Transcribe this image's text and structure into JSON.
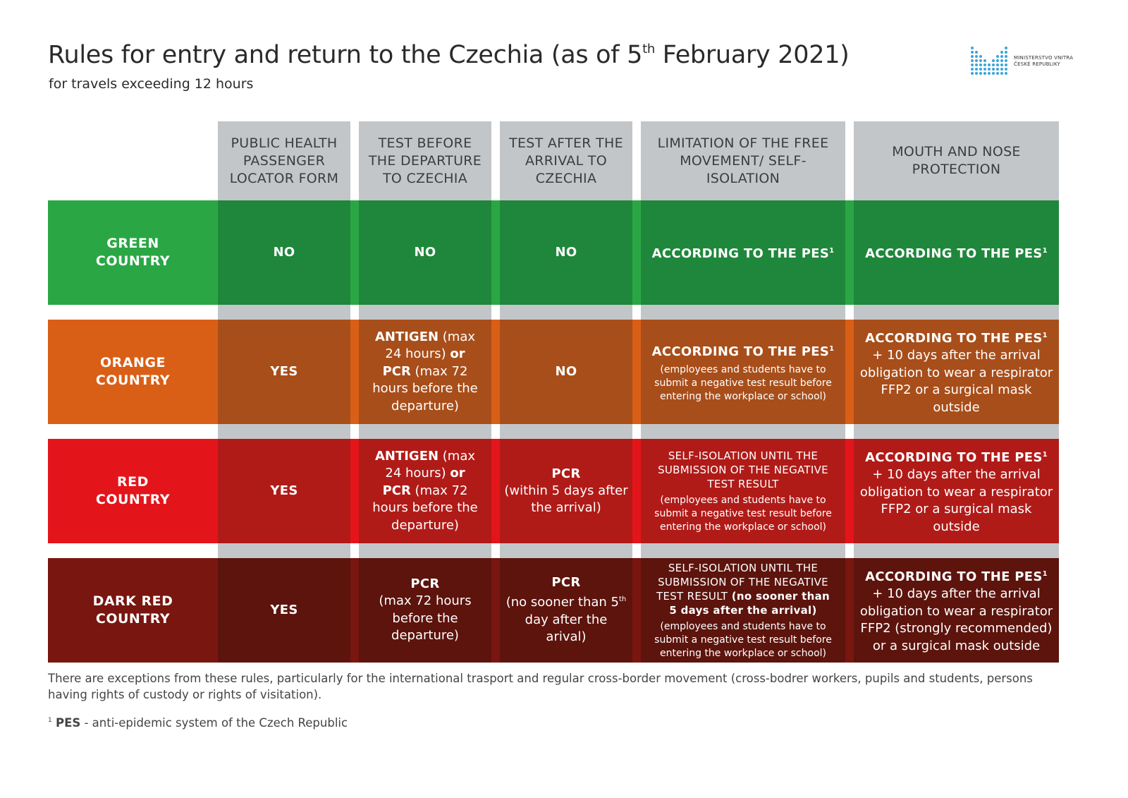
{
  "header": {
    "title_main": "Rules for entry and return to the Czechia (as of 5",
    "title_sup": "th",
    "title_end": " February 2021)",
    "subtitle": "for travels exceeding 12 hours",
    "logo": {
      "icon": "ministry-logo-dots-icon",
      "line1": "MINISTERSTVO VNITRA",
      "line2": "ČESKÉ REPUBLIKY",
      "color": "#3aa6d8"
    }
  },
  "columns": [
    "PUBLIC HEALTH PASSENGER LOCATOR FORM",
    "TEST BEFORE THE DEPARTURE TO CZECHIA",
    "TEST AFTER THE ARRIVAL TO CZECHIA",
    "LIMITATION OF THE FREE MOVEMENT/ SELF-ISOLATION",
    "MOUTH AND NOSE PROTECTION"
  ],
  "rows": [
    {
      "label": "GREEN COUNTRY",
      "base_color": "#2aa744",
      "cell_color": "#1f873b",
      "plf": "NO",
      "test_before": {
        "text": "NO"
      },
      "test_after": {
        "bold": "NO",
        "detail": ""
      },
      "isolation": {
        "bold": "ACCORDING TO THE PES",
        "sup": "1",
        "detail": ""
      },
      "mask": {
        "bold": "ACCORDING TO THE PES",
        "sup": "1",
        "detail": ""
      }
    },
    {
      "label": "ORANGE COUNTRY",
      "base_color": "#d95f17",
      "cell_color": "#a84e1a",
      "plf": "YES",
      "test_before": {
        "b1": "ANTIGEN",
        "t1": " (max 24 hours) ",
        "b2": "or",
        "b3": "PCR",
        "t2": " (max 72 hours before the departure)"
      },
      "test_after": {
        "bold": "NO",
        "detail": ""
      },
      "isolation": {
        "bold": "ACCORDING TO THE PES",
        "sup": "1",
        "detail": "(employees and students have to submit a negative test result before entering the workplace or school)"
      },
      "mask": {
        "bold": "ACCORDING TO THE PES",
        "sup": "1",
        "detail": "+ 10 days after the arrival obligation to wear a respirator FFP2 or a surgical mask outside"
      }
    },
    {
      "label": "RED COUNTRY",
      "base_color": "#e3151b",
      "cell_color": "#b01b18",
      "plf": "YES",
      "test_before": {
        "b1": "ANTIGEN",
        "t1": " (max 24 hours) ",
        "b2": "or",
        "b3": "PCR",
        "t2": " (max 72 hours before the departure)"
      },
      "test_after": {
        "bold": "PCR",
        "detail": "(within 5 days after the arrival)"
      },
      "isolation": {
        "caps": "SELF-ISOLATION UNTIL THE SUBMISSION OF THE NEGATIVE TEST RESULT",
        "caps_extra": "",
        "detail": "(employees and students have to submit a negative test result before entering the workplace or school)"
      },
      "mask": {
        "bold": "ACCORDING TO THE PES",
        "sup": "1",
        "detail": "+ 10 days after the arrival obligation to wear a respirator FFP2 or a surgical mask outside"
      }
    },
    {
      "label": "DARK RED COUNTRY",
      "base_color": "#78160f",
      "cell_color": "#5c140d",
      "plf": "YES",
      "test_before": {
        "bold": "PCR",
        "detail": "(max 72 hours before the departure)"
      },
      "test_after": {
        "bold": "PCR",
        "detail_pre": "(no sooner than ",
        "detail_num": "5",
        "detail_sup": "th",
        "detail_post": " day after the arival)"
      },
      "isolation": {
        "caps": "SELF-ISOLATION UNTIL THE SUBMISSION OF THE NEGATIVE TEST RESULT",
        "caps_extra": " (no sooner than 5 days after the arrival)",
        "detail": "(employees and students have to submit a negative test result before entering the workplace or school)"
      },
      "mask": {
        "bold": "ACCORDING TO THE PES",
        "sup": "1",
        "detail": "+ 10 days after the arrival obligation to wear a respirator FFP2 (strongly recommended) or a surgical mask outside"
      }
    }
  ],
  "colors": {
    "header_grey": "#c3c6c8",
    "text_dark": "#2a2a2a"
  },
  "notes": {
    "exceptions": "There are exceptions from these rules, particularly for the international trasport and regular cross-border movement (cross-bodrer workers, pupils and students, persons having rights of custody or rights of visitation).",
    "footnote_mark": "1",
    "footnote_term": "PES",
    "footnote_text": " - anti-epidemic system of the Czech Republic"
  }
}
